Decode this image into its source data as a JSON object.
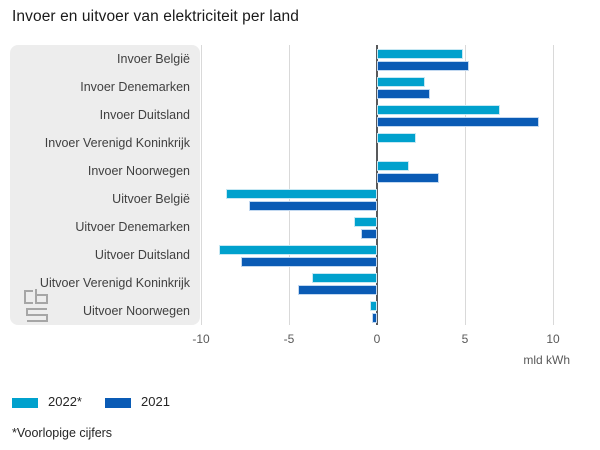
{
  "title": "Invoer en uitvoer van elektriciteit per land",
  "footnote": "*Voorlopige cijfers",
  "logo": "cbs-logo",
  "colors": {
    "series_2022": "#00a1cd",
    "series_2021": "#0a5bb5",
    "panel_background": "#ededed",
    "gridline": "#d9d9d9",
    "zero_line": "#58595b"
  },
  "chart_data": {
    "type": "bar",
    "orientation": "horizontal",
    "title": "Invoer en uitvoer van elektriciteit per land",
    "categories": [
      "Invoer België",
      "Invoer Denemarken",
      "Invoer Duitsland",
      "Invoer Verenigd Koninkrijk",
      "Invoer Noorwegen",
      "Uitvoer België",
      "Uitvoer Denemarken",
      "Uitvoer Duitsland",
      "Uitvoer Verenigd Koninkrijk",
      "Uitvoer Noorwegen"
    ],
    "series": [
      {
        "name": "2022*",
        "color": "#00a1cd",
        "values": [
          4.9,
          2.7,
          7.0,
          2.2,
          1.8,
          -8.6,
          -1.3,
          -9.0,
          -3.7,
          -0.4
        ]
      },
      {
        "name": "2021",
        "color": "#0a5bb5",
        "values": [
          5.2,
          3.0,
          9.2,
          0,
          3.5,
          -7.3,
          -0.9,
          -7.7,
          -4.5,
          -0.3
        ]
      }
    ],
    "xlabel": "mld kWh",
    "xlim": [
      -10,
      10
    ],
    "xticks": [
      -10,
      -5,
      0,
      5,
      10
    ],
    "grid": true,
    "legend_position": "bottom-left",
    "footnote": "*Voorlopige cijfers"
  }
}
